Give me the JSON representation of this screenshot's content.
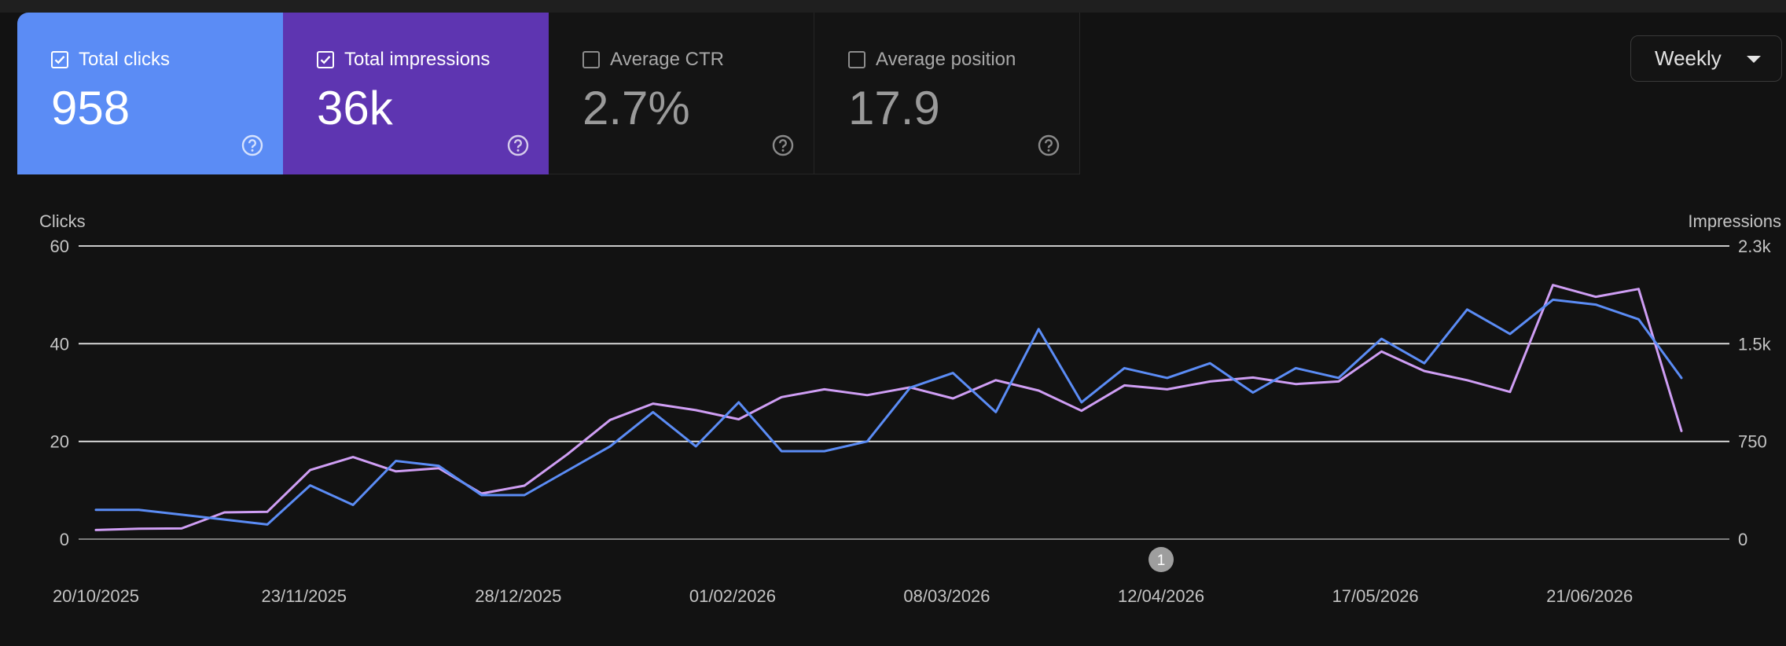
{
  "cards": [
    {
      "label": "Total clicks",
      "value": "958",
      "checked": true
    },
    {
      "label": "Total impressions",
      "value": "36k",
      "checked": true
    },
    {
      "label": "Average CTR",
      "value": "2.7%",
      "checked": false
    },
    {
      "label": "Average position",
      "value": "17.9",
      "checked": false
    }
  ],
  "period": {
    "label": "Weekly"
  },
  "colors": {
    "clicks": "#5b8cf5",
    "impressions": "#cf9ef4",
    "gridline": "#e6e6e6",
    "annotation": "#9e9e9e"
  },
  "chart_data": {
    "type": "line",
    "ylabel_left": "Clicks",
    "ylabel_right": "Impressions",
    "ylim_left": [
      0,
      60
    ],
    "ylim_right": [
      0,
      2250
    ],
    "yticks_left": [
      "0",
      "20",
      "40",
      "60"
    ],
    "yticks_right": [
      "0",
      "750",
      "1.5k",
      "2.3k"
    ],
    "xtick_labels": [
      "20/10/2025",
      "23/11/2025",
      "28/12/2025",
      "01/02/2026",
      "08/03/2026",
      "12/04/2026",
      "17/05/2026",
      "21/06/2026"
    ],
    "grid": true,
    "x": [
      "20/10/2025",
      "27/10/2025",
      "03/11/2025",
      "10/11/2025",
      "17/11/2025",
      "24/11/2025",
      "01/12/2025",
      "08/12/2025",
      "15/12/2025",
      "22/12/2025",
      "29/12/2025",
      "05/01/2026",
      "12/01/2026",
      "19/01/2026",
      "26/01/2026",
      "02/02/2026",
      "09/02/2026",
      "16/02/2026",
      "23/02/2026",
      "02/03/2026",
      "09/03/2026",
      "16/03/2026",
      "23/03/2026",
      "30/03/2026",
      "06/04/2026",
      "13/04/2026",
      "20/04/2026",
      "27/04/2026",
      "04/05/2026",
      "11/05/2026",
      "18/05/2026",
      "25/05/2026",
      "01/06/2026",
      "08/06/2026",
      "15/06/2026",
      "22/06/2026",
      "29/06/2026",
      "06/07/2026"
    ],
    "series": [
      {
        "name": "Clicks",
        "axis": "left",
        "values": [
          6,
          6,
          5,
          4,
          3,
          11,
          7,
          16,
          15,
          9,
          9,
          14,
          19,
          26,
          19,
          28,
          18,
          18,
          20,
          31,
          34,
          26,
          43,
          28,
          35,
          33,
          36,
          30,
          35,
          33,
          41,
          36,
          47,
          42,
          49,
          48,
          45,
          33
        ]
      },
      {
        "name": "Impressions",
        "axis": "right",
        "values": [
          70,
          80,
          82,
          205,
          210,
          530,
          630,
          520,
          545,
          350,
          410,
          650,
          915,
          1040,
          990,
          920,
          1090,
          1150,
          1105,
          1165,
          1080,
          1220,
          1140,
          985,
          1180,
          1150,
          1210,
          1240,
          1190,
          1210,
          1440,
          1290,
          1220,
          1130,
          1950,
          1860,
          1920,
          830
        ]
      }
    ],
    "annotations": [
      {
        "x": "12/04/2026",
        "label": "1"
      }
    ]
  }
}
